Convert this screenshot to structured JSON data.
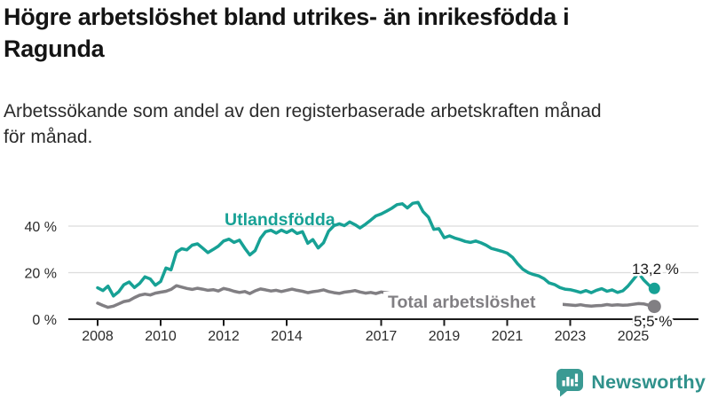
{
  "chart_data": {
    "type": "line",
    "title": "Högre arbetslöshet bland utrikes- än inrikesfödda i Ragunda",
    "title_lines": [
      "Högre arbetslöshet bland utrikes- än inrikesfödda i",
      "Ragunda"
    ],
    "subtitle": "Arbetssökande som andel av den registerbaserade arbetskraften månad för månad.",
    "subtitle_lines": [
      "Arbetssökande som andel av den registerbaserade arbetskraften månad",
      "för månad."
    ],
    "x_unit": "decimal_year_monthly_samples",
    "xlim": [
      2007.5,
      2026.3
    ],
    "ylim": [
      0,
      52
    ],
    "grid": "horizontal",
    "legend": "inline-labels",
    "xticks": [
      2008,
      2010,
      2012,
      2014,
      2017,
      2019,
      2021,
      2023,
      2025
    ],
    "yticks": [
      "0 %",
      "20 %",
      "40 %"
    ],
    "ytick_values": [
      0,
      20,
      40
    ],
    "x": [
      2008.0,
      2008.17,
      2008.33,
      2008.5,
      2008.67,
      2008.83,
      2009.0,
      2009.17,
      2009.33,
      2009.5,
      2009.67,
      2009.83,
      2010.0,
      2010.17,
      2010.33,
      2010.5,
      2010.67,
      2010.83,
      2011.0,
      2011.17,
      2011.33,
      2011.5,
      2011.67,
      2011.83,
      2012.0,
      2012.17,
      2012.33,
      2012.5,
      2012.67,
      2012.83,
      2013.0,
      2013.17,
      2013.33,
      2013.5,
      2013.67,
      2013.83,
      2014.0,
      2014.17,
      2014.33,
      2014.5,
      2014.67,
      2014.83,
      2015.0,
      2015.17,
      2015.33,
      2015.5,
      2015.67,
      2015.83,
      2016.0,
      2016.17,
      2016.33,
      2016.5,
      2016.67,
      2016.83,
      2017.0,
      2017.17,
      2017.33,
      2017.5,
      2017.67,
      2017.83,
      2018.0,
      2018.17,
      2018.33,
      2018.5,
      2018.67,
      2018.83,
      2019.0,
      2019.17,
      2019.33,
      2019.5,
      2019.67,
      2019.83,
      2020.0,
      2020.17,
      2020.33,
      2020.5,
      2020.67,
      2020.83,
      2021.0,
      2021.17,
      2021.33,
      2021.5,
      2021.67,
      2021.83,
      2022.0,
      2022.17,
      2022.33,
      2022.5,
      2022.67,
      2022.83,
      2023.0,
      2023.17,
      2023.33,
      2023.5,
      2023.67,
      2023.83,
      2024.0,
      2024.17,
      2024.33,
      2024.5,
      2024.67,
      2024.83,
      2025.0,
      2025.17,
      2025.33,
      2025.5,
      2025.67
    ],
    "series": [
      {
        "name": "Utlandsfödda",
        "color": "#17a195",
        "end_label": "13,2 %",
        "end_value": 13.2,
        "values": [
          13.5,
          12.3,
          14.2,
          10.0,
          11.8,
          14.8,
          16.0,
          13.6,
          15.3,
          18.2,
          17.3,
          14.6,
          16.2,
          22.0,
          21.2,
          28.8,
          30.3,
          29.8,
          31.8,
          32.4,
          30.6,
          28.6,
          30.0,
          31.4,
          33.6,
          34.4,
          33.0,
          34.0,
          30.5,
          27.6,
          29.5,
          34.8,
          37.6,
          38.2,
          37.0,
          38.3,
          37.2,
          38.4,
          36.8,
          37.6,
          32.6,
          34.2,
          30.6,
          32.8,
          37.8,
          40.2,
          41.0,
          40.2,
          41.8,
          40.6,
          39.2,
          40.8,
          42.6,
          44.4,
          45.2,
          46.4,
          47.6,
          49.2,
          49.6,
          47.8,
          49.8,
          50.2,
          46.2,
          43.8,
          38.6,
          38.9,
          35.0,
          35.8,
          34.9,
          34.2,
          33.4,
          33.0,
          33.6,
          32.8,
          31.8,
          30.4,
          29.8,
          29.2,
          28.4,
          26.6,
          23.8,
          21.4,
          20.0,
          19.2,
          18.6,
          17.4,
          15.6,
          14.9,
          13.6,
          12.9,
          12.7,
          12.1,
          11.5,
          12.3,
          11.4,
          12.4,
          13.1,
          12.0,
          12.6,
          11.5,
          12.2,
          14.2,
          17.0,
          19.8,
          16.9,
          14.6,
          13.2
        ]
      },
      {
        "name": "Total arbetslöshet",
        "color": "#817f83",
        "end_label": "5,5 %",
        "end_value": 5.5,
        "values": [
          6.9,
          5.9,
          5.1,
          5.6,
          6.6,
          7.6,
          8.0,
          9.3,
          10.3,
          10.8,
          10.4,
          11.2,
          11.6,
          12.0,
          12.8,
          14.4,
          13.8,
          13.2,
          12.8,
          13.3,
          12.9,
          12.4,
          12.7,
          12.1,
          13.2,
          12.7,
          12.0,
          11.5,
          11.9,
          11.0,
          12.2,
          13.0,
          12.6,
          12.1,
          12.4,
          11.9,
          12.4,
          12.9,
          12.4,
          12.0,
          11.4,
          11.8,
          12.1,
          12.6,
          11.9,
          11.4,
          11.1,
          11.6,
          11.9,
          12.3,
          11.7,
          11.2,
          11.5,
          11.0,
          11.7,
          11.4,
          11.0,
          10.7,
          10.4,
          10.6,
          10.2,
          10.0,
          9.7,
          9.5,
          9.3,
          9.5,
          9.1,
          8.9,
          8.7,
          8.5,
          8.4,
          8.6,
          8.8,
          8.9,
          8.6,
          8.3,
          8.0,
          7.8,
          7.6,
          7.4,
          7.2,
          7.0,
          6.9,
          6.8,
          6.8,
          6.7,
          6.5,
          6.4,
          6.5,
          6.3,
          6.1,
          5.9,
          6.2,
          5.8,
          5.6,
          5.8,
          5.9,
          6.3,
          6.0,
          6.2,
          6.0,
          6.1,
          6.4,
          6.7,
          6.6,
          6.0,
          5.5
        ]
      }
    ]
  },
  "colors": {
    "background": "#ffffff",
    "gridline": "#dcdcdc",
    "axis": "#1a1a1a",
    "accent_teal": "#17a195",
    "neutral_gray": "#817f83",
    "brand_teal": "#2f918b"
  },
  "branding": {
    "logo_text": "Newsworthy",
    "logo_icon": "bar-chart-speech-bubble-icon"
  }
}
